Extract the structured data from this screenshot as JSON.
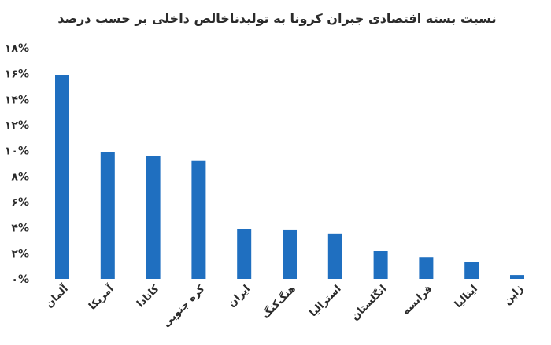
{
  "chart_data": {
    "type": "bar",
    "title": "نسبت بسته اقتصادی جبران کرونا به تولیدناخالص داخلی بر حسب درصد",
    "categories": [
      "آلمان",
      "آمریکا",
      "کانادا",
      "کره جنوبی",
      "ایران",
      "هنگ‌کنگ",
      "استرالیا",
      "انگلستان",
      "فرانسه",
      "ایتالیا",
      "ژاپن"
    ],
    "values": [
      15.9,
      9.9,
      9.6,
      9.2,
      3.9,
      3.8,
      3.5,
      2.2,
      1.7,
      1.3,
      0.3
    ],
    "ylim": [
      0,
      18
    ],
    "yticks": [
      "۰%",
      "۲%",
      "۴%",
      "۶%",
      "۸%",
      "۱۰%",
      "۱۲%",
      "۱۴%",
      "۱۶%",
      "۱۸%"
    ],
    "grid": false,
    "bar_color": "#1f6fc0"
  }
}
